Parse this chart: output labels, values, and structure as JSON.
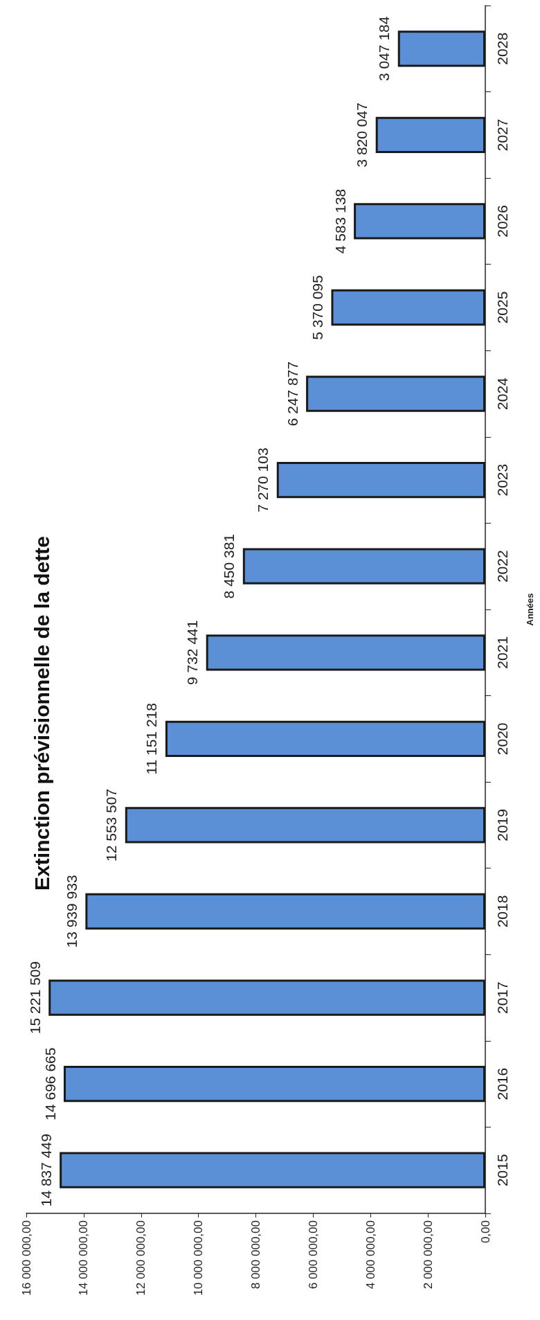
{
  "chart_data": {
    "type": "bar",
    "orientation": "horizontal",
    "title": "Extinction prévisionnelle de la dette",
    "ylabel": "Années",
    "categories": [
      "2028",
      "2027",
      "2026",
      "2025",
      "2024",
      "2023",
      "2022",
      "2021",
      "2020",
      "2019",
      "2018",
      "2017",
      "2016",
      "2015"
    ],
    "values": [
      3047184,
      3820047,
      4583138,
      5370095,
      6247877,
      7270103,
      8450381,
      9732441,
      11151218,
      12553507,
      13939933,
      15221509,
      14696665,
      14837449
    ],
    "value_labels": [
      "3 047 184",
      "3 820 047",
      "4 583 138",
      "5 370 095",
      "6 247 877",
      "7 270 103",
      "8 450 381",
      "9 732 441",
      "11 151 218",
      "12 553 507",
      "13 939 933",
      "15 221 509",
      "14 696 665",
      "14 837 449"
    ],
    "color": "#5b8fd6",
    "xlim": [
      16000000,
      0
    ],
    "xticks": [
      {
        "value": 16000000,
        "label": "16 000 000,00"
      },
      {
        "value": 14000000,
        "label": "14 000 000,00"
      },
      {
        "value": 12000000,
        "label": "12 000 000,00"
      },
      {
        "value": 10000000,
        "label": "10 000 000,00"
      },
      {
        "value": 8000000,
        "label": "8 000 000,00"
      },
      {
        "value": 6000000,
        "label": "6 000 000,00"
      },
      {
        "value": 4000000,
        "label": "4 000 000,00"
      },
      {
        "value": 2000000,
        "label": "2 000 000,00"
      },
      {
        "value": 0,
        "label": "0,00"
      }
    ],
    "grid": false
  }
}
